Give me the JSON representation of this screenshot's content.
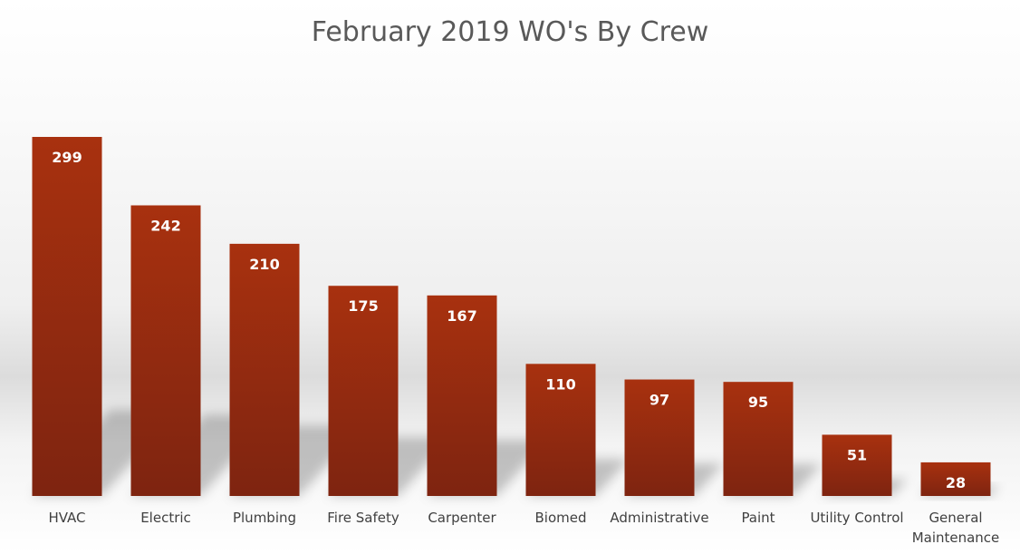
{
  "chart_data": {
    "type": "bar",
    "title": "February 2019 WO's By Crew",
    "categories": [
      "HVAC",
      "Electric",
      "Plumbing",
      "Fire Safety",
      "Carpenter",
      "Biomed",
      "Administrative",
      "Paint",
      "Utility Control",
      "General Maintenance"
    ],
    "values": [
      299,
      242,
      210,
      175,
      167,
      110,
      97,
      95,
      51,
      28
    ],
    "xlabel": "",
    "ylabel": "",
    "data_labels": true,
    "grid": false,
    "legend": false,
    "colors": {
      "bar_top": "#A8310F",
      "bar_bottom": "#7E2410",
      "label": "#FFFFFF",
      "title": "#595959",
      "axis_text": "#404040"
    }
  }
}
